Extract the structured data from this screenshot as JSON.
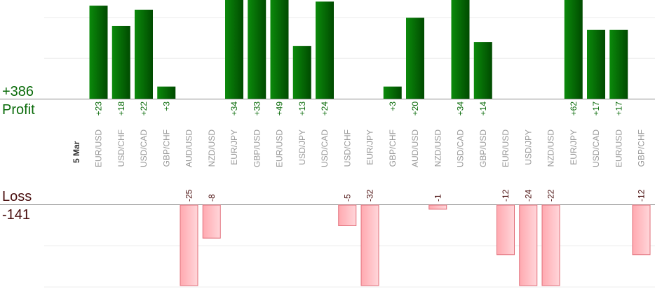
{
  "summary": {
    "profit_total": "+386",
    "profit_label": "Profit",
    "loss_label": "Loss",
    "loss_total": "-141"
  },
  "chart_data": {
    "type": "bar",
    "title": "",
    "date_label": "5 Mar",
    "grid": true,
    "categories": [
      "EUR/USD",
      "USD/CHF",
      "USD/CAD",
      "GBP/CHF",
      "AUD/USD",
      "NZD/USD",
      "EUR/JPY",
      "GBP/USD",
      "EUR/USD",
      "USD/JPY",
      "USD/CAD",
      "USD/CHF",
      "EUR/JPY",
      "GBP/CHF",
      "AUD/USD",
      "NZD/USD",
      "USD/CAD",
      "GBP/USD",
      "EUR/USD",
      "USD/JPY",
      "NZD/USD",
      "EUR/JPY",
      "USD/CAD",
      "EUR/USD",
      "GBP/CHF"
    ],
    "series": [
      {
        "values": [
          23,
          18,
          22,
          3,
          0,
          0,
          34,
          33,
          49,
          13,
          24,
          0,
          0,
          3,
          20,
          0,
          34,
          14,
          0,
          0,
          0,
          62,
          17,
          17,
          0
        ],
        "labels": [
          "+23",
          "+18",
          "+22",
          "+3",
          "",
          "",
          "+34",
          "+33",
          "+49",
          "+13",
          "+24",
          "",
          "",
          "+3",
          "+20",
          "",
          "+34",
          "+14",
          "",
          "",
          "",
          "+62",
          "+17",
          "+17",
          ""
        ]
      },
      {
        "values": [
          0,
          0,
          0,
          0,
          -25,
          -8,
          0,
          0,
          0,
          0,
          0,
          -5,
          -32,
          0,
          0,
          -1,
          0,
          0,
          -12,
          -24,
          -22,
          0,
          0,
          0,
          -12
        ],
        "labels": [
          "",
          "",
          "",
          "",
          "-25",
          "-8",
          "",
          "",
          "",
          "",
          "",
          "-5",
          "-32",
          "",
          "",
          "-1",
          "",
          "",
          "-12",
          "-24",
          "-22",
          "",
          "",
          "",
          "-12"
        ]
      }
    ],
    "profit_axis": {
      "gridlines": [
        10,
        20
      ],
      "visible_max": 24
    },
    "loss_axis": {
      "gridlines": [
        -10,
        -20
      ],
      "visible_min": -22
    },
    "colors": {
      "profit_top": "#0a7a0a",
      "profit_bottom": "#004d00",
      "loss_top": "#ffb3b8",
      "loss_bottom": "#ffcfd3",
      "profit_text": "#0a6b0a",
      "loss_text": "#4a0f0f"
    }
  }
}
